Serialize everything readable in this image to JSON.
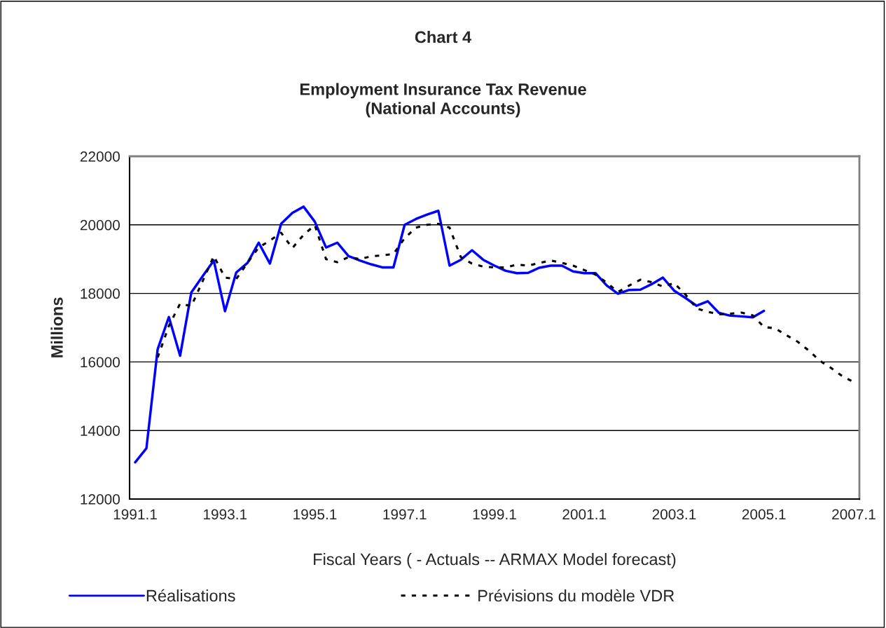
{
  "chart_data": {
    "type": "line",
    "title": "Chart 4",
    "subtitle": "Employment Insurance Tax Revenue\n(National Accounts)",
    "xlabel": "Fiscal Years ( - Actuals -- ARMAX Model forecast)",
    "ylabel": "Millions",
    "categories": [
      "1991.1",
      null,
      null,
      null,
      null,
      null,
      null,
      null,
      "1993.1",
      null,
      null,
      null,
      null,
      null,
      null,
      null,
      "1995.1",
      null,
      null,
      null,
      null,
      null,
      null,
      null,
      "1997.1",
      null,
      null,
      null,
      null,
      null,
      null,
      null,
      "1999.1",
      null,
      null,
      null,
      null,
      null,
      null,
      null,
      "2001.1",
      null,
      null,
      null,
      null,
      null,
      null,
      null,
      "2003.1",
      null,
      null,
      null,
      null,
      null,
      null,
      null,
      "2005.1",
      null,
      null,
      null,
      null,
      null,
      null,
      null,
      "2007.1"
    ],
    "series": [
      {
        "name": "Réalisations",
        "color": "#0000ff",
        "line_style": "solid",
        "values": [
          13070,
          13480,
          16370,
          17310,
          16180,
          18030,
          18500,
          18960,
          17480,
          18610,
          18890,
          19480,
          18870,
          20030,
          20350,
          20530,
          20090,
          19340,
          19480,
          19090,
          18960,
          18850,
          18760,
          18760,
          20000,
          20170,
          20300,
          20410,
          18810,
          18980,
          19260,
          18980,
          18810,
          18660,
          18590,
          18600,
          18750,
          18810,
          18810,
          18640,
          18590,
          18590,
          18230,
          17990,
          18100,
          18110,
          18270,
          18460,
          18080,
          17870,
          17640,
          17770,
          17430,
          17350,
          17330,
          17300,
          17490,
          null,
          null,
          null,
          null,
          null,
          null,
          null,
          null
        ]
      },
      {
        "name": "Prévisions du modèle VDR",
        "color": "#000000",
        "line_style": "dotted",
        "values": [
          null,
          null,
          16130,
          17050,
          17700,
          17630,
          18350,
          19090,
          18460,
          18420,
          18890,
          19340,
          19540,
          19770,
          19320,
          19710,
          19990,
          19000,
          18910,
          19060,
          19000,
          19080,
          19110,
          19150,
          19610,
          19920,
          20000,
          20030,
          19920,
          19060,
          18870,
          18780,
          18760,
          18760,
          18840,
          18810,
          18890,
          18960,
          18890,
          18810,
          18680,
          18550,
          18310,
          18040,
          18230,
          18400,
          18330,
          18200,
          18300,
          17970,
          17560,
          17460,
          17390,
          17410,
          17440,
          17360,
          17020,
          16980,
          16780,
          16590,
          16330,
          16030,
          15820,
          15580,
          15410
        ]
      }
    ],
    "ylim": [
      12000,
      22000
    ],
    "yticks": [
      12000,
      14000,
      16000,
      18000,
      20000,
      22000
    ],
    "grid": "y",
    "legend": "bottom",
    "marker": "none"
  }
}
